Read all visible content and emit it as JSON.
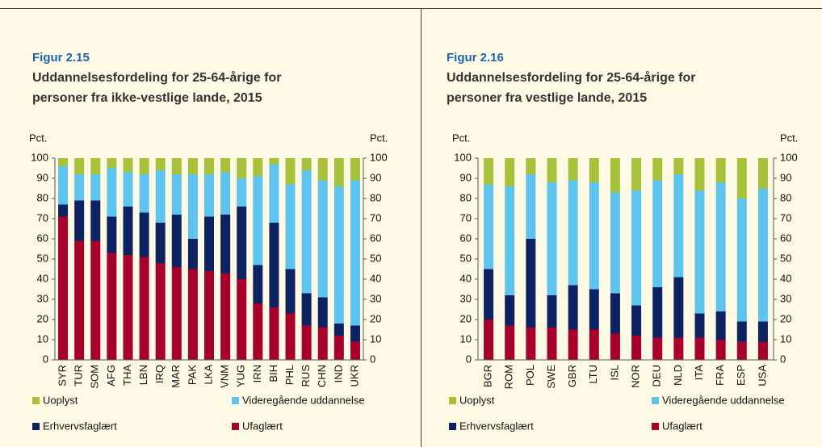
{
  "chart_data": [
    {
      "type": "bar",
      "stacked": true,
      "figure": "Figur 2.15",
      "title": [
        "Uddannelsesfordeling for 25-64-årige for",
        "personer fra ikke-vestlige lande, 2015"
      ],
      "y_label": "Pct.",
      "y2_label": "Pct.",
      "categories": [
        "SYR",
        "TUR",
        "SOM",
        "AFG",
        "THA",
        "LBN",
        "IRQ",
        "MAR",
        "PAK",
        "LKA",
        "VNM",
        "YUG",
        "IRN",
        "BIH",
        "PHL",
        "RUS",
        "CHN",
        "IND",
        "UKR"
      ],
      "series": [
        {
          "name": "Ufaglært",
          "color": "#a6002b",
          "values": [
            71,
            59,
            59,
            53,
            52,
            51,
            48,
            46,
            45,
            44,
            43,
            40,
            28,
            26,
            23,
            17,
            16,
            12,
            9
          ]
        },
        {
          "name": "Erhvervsfaglært",
          "color": "#0d2260",
          "values": [
            6,
            20,
            20,
            18,
            24,
            22,
            20,
            26,
            15,
            27,
            29,
            36,
            19,
            42,
            22,
            16,
            15,
            6,
            8
          ]
        },
        {
          "name": "Videregående uddannelse",
          "color": "#5ec4ef",
          "values": [
            19,
            13,
            13,
            24,
            17,
            19,
            26,
            20,
            32,
            21,
            21,
            14,
            44,
            29,
            42,
            61,
            58,
            68,
            72
          ]
        },
        {
          "name": "Uoplyst",
          "color": "#a7c23a",
          "values": [
            4,
            8,
            8,
            5,
            7,
            8,
            6,
            8,
            8,
            8,
            7,
            10,
            9,
            3,
            13,
            6,
            11,
            14,
            11
          ]
        }
      ],
      "ylim": [
        0,
        100
      ],
      "yticks": [
        0,
        10,
        20,
        30,
        40,
        50,
        60,
        70,
        80,
        90,
        100
      ],
      "y2lim": [
        0,
        100
      ],
      "y2ticks": [
        0,
        10,
        20,
        30,
        40,
        50,
        60,
        70,
        80,
        90,
        100
      ]
    },
    {
      "type": "bar",
      "stacked": true,
      "figure": "Figur 2.16",
      "title": [
        "Uddannelsesfordeling for 25-64-årige for",
        "personer fra vestlige lande, 2015"
      ],
      "y_label": "Pct.",
      "y2_label": "Pct.",
      "categories": [
        "BGR",
        "ROM",
        "POL",
        "SWE",
        "GBR",
        "LTU",
        "ISL",
        "NOR",
        "DEU",
        "NLD",
        "ITA",
        "FRA",
        "ESP",
        "USA"
      ],
      "series": [
        {
          "name": "Ufaglært",
          "color": "#a6002b",
          "values": [
            20,
            17,
            16,
            16,
            15,
            15,
            13,
            12,
            11,
            11,
            11,
            10,
            9,
            9
          ]
        },
        {
          "name": "Erhvervsfaglært",
          "color": "#0d2260",
          "values": [
            25,
            15,
            44,
            16,
            22,
            20,
            20,
            15,
            25,
            30,
            12,
            14,
            10,
            10
          ]
        },
        {
          "name": "Videregående uddannelse",
          "color": "#5ec4ef",
          "values": [
            42,
            54,
            32,
            56,
            52,
            53,
            50,
            57,
            53,
            51,
            61,
            64,
            61,
            66
          ]
        },
        {
          "name": "Uoplyst",
          "color": "#a7c23a",
          "values": [
            13,
            14,
            8,
            12,
            11,
            12,
            17,
            16,
            11,
            8,
            16,
            12,
            20,
            15
          ]
        }
      ],
      "ylim": [
        0,
        100
      ],
      "yticks": [
        0,
        10,
        20,
        30,
        40,
        50,
        60,
        70,
        80,
        90,
        100
      ],
      "y2lim": [
        0,
        100
      ],
      "y2ticks": [
        0,
        10,
        20,
        30,
        40,
        50,
        60,
        70,
        80,
        90,
        100
      ]
    }
  ]
}
